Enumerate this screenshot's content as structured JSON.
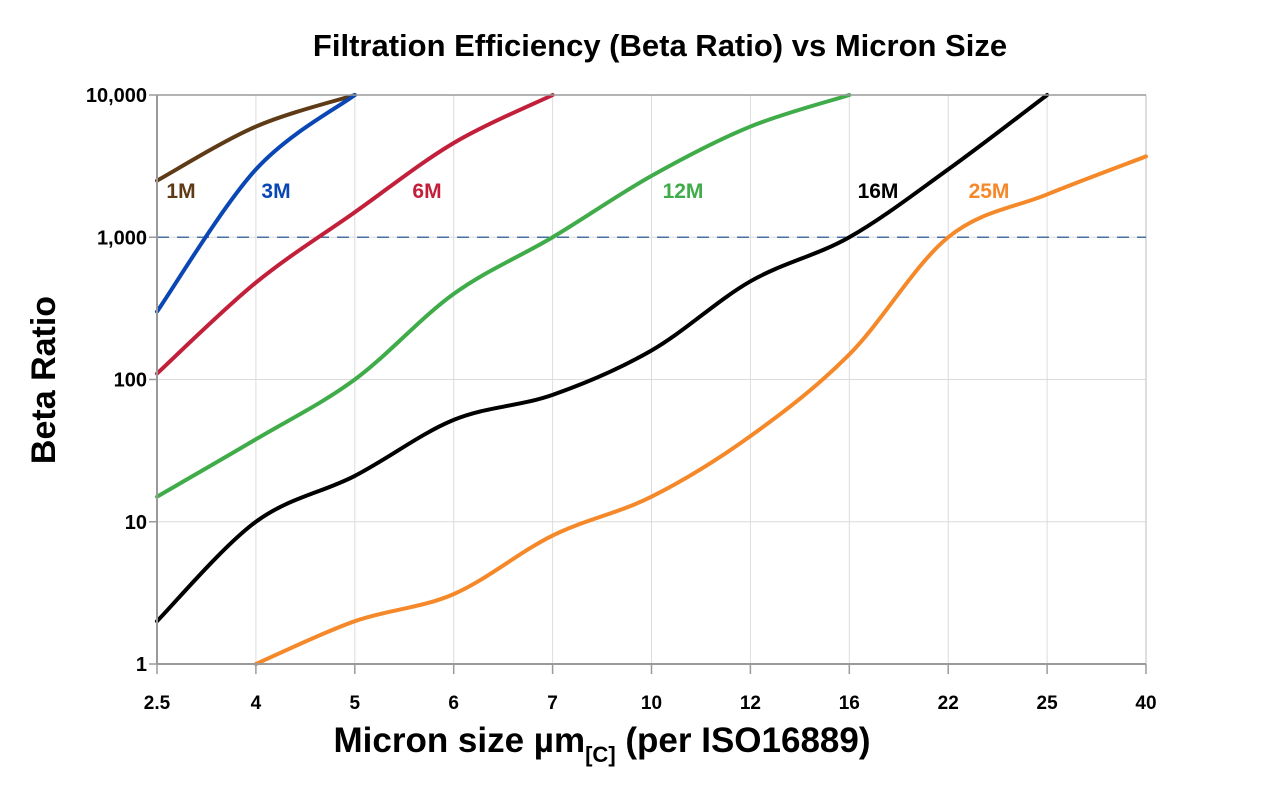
{
  "chart_data": {
    "type": "line",
    "title": "Filtration Efficiency (Beta Ratio) vs Micron Size",
    "xlabel": "Micron size µm",
    "xlabel_subscript": "[C]",
    "xlabel_suffix": " (per ISO16889)",
    "ylabel": "Beta Ratio",
    "y_scale": "log",
    "ylim": [
      1,
      10000
    ],
    "y_ticks": [
      1,
      10,
      100,
      1000,
      10000
    ],
    "y_tick_labels": [
      "1",
      "10",
      "100",
      "1,000",
      "10,000"
    ],
    "categories": [
      "2.5",
      "4",
      "5",
      "6",
      "7",
      "10",
      "12",
      "16",
      "22",
      "25",
      "40"
    ],
    "grid": true,
    "reference_line": {
      "y": 1000,
      "style": "dashed",
      "color": "#4a6fa5"
    },
    "series": [
      {
        "name": "1M",
        "color": "#5e3b16",
        "values": [
          2500,
          6000,
          10000,
          null,
          null,
          null,
          null,
          null,
          null,
          null,
          null
        ]
      },
      {
        "name": "3M",
        "color": "#0a46b4",
        "values": [
          300,
          3000,
          10000,
          null,
          null,
          null,
          null,
          null,
          null,
          null,
          null
        ]
      },
      {
        "name": "6M",
        "color": "#c21f3a",
        "values": [
          110,
          480,
          1500,
          4600,
          10000,
          null,
          null,
          null,
          null,
          null,
          null
        ]
      },
      {
        "name": "12M",
        "color": "#3fac49",
        "values": [
          15,
          38,
          100,
          400,
          1000,
          2700,
          6000,
          10000,
          null,
          null,
          null
        ]
      },
      {
        "name": "16M",
        "color": "#000000",
        "values": [
          2,
          10,
          21,
          52,
          78,
          160,
          490,
          1000,
          3000,
          10000,
          null
        ]
      },
      {
        "name": "25M",
        "color": "#f5892a",
        "values": [
          null,
          1,
          2,
          3.1,
          8,
          15,
          40,
          150,
          1000,
          2000,
          3700
        ]
      }
    ]
  }
}
